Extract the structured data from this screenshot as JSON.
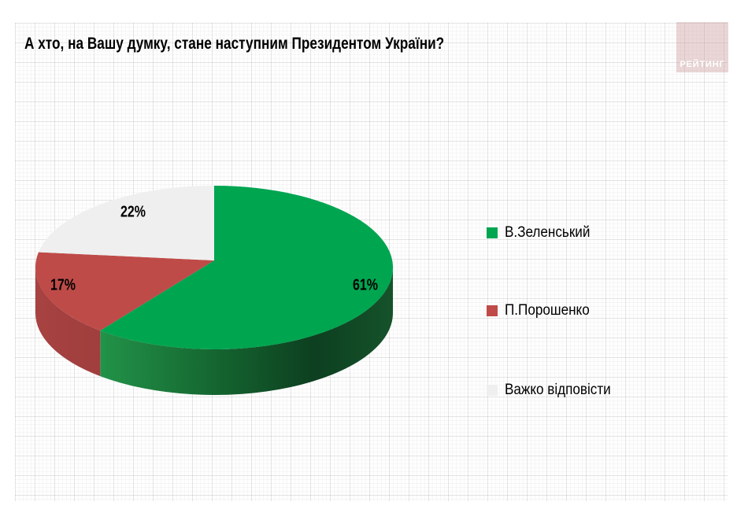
{
  "title": "А хто, на Вашу думку, стане наступним Президентом України?",
  "logo": {
    "text": "РЕЙТИНГ"
  },
  "chart_data": {
    "type": "pie",
    "style": "3d",
    "title": "А хто, на Вашу думку, стане наступним Президентом України?",
    "labels": [
      "В.Зеленський",
      "П.Порошенко",
      "Важко відповісти"
    ],
    "values": [
      61,
      17,
      22
    ],
    "value_labels": [
      "61%",
      "17%",
      "22%"
    ],
    "colors": [
      "#00A550",
      "#BE4B48",
      "#EFEFEF"
    ],
    "unit": "%",
    "start_angle_deg": 0,
    "direction": "clockwise",
    "legend_position": "right",
    "grid_background": true
  }
}
